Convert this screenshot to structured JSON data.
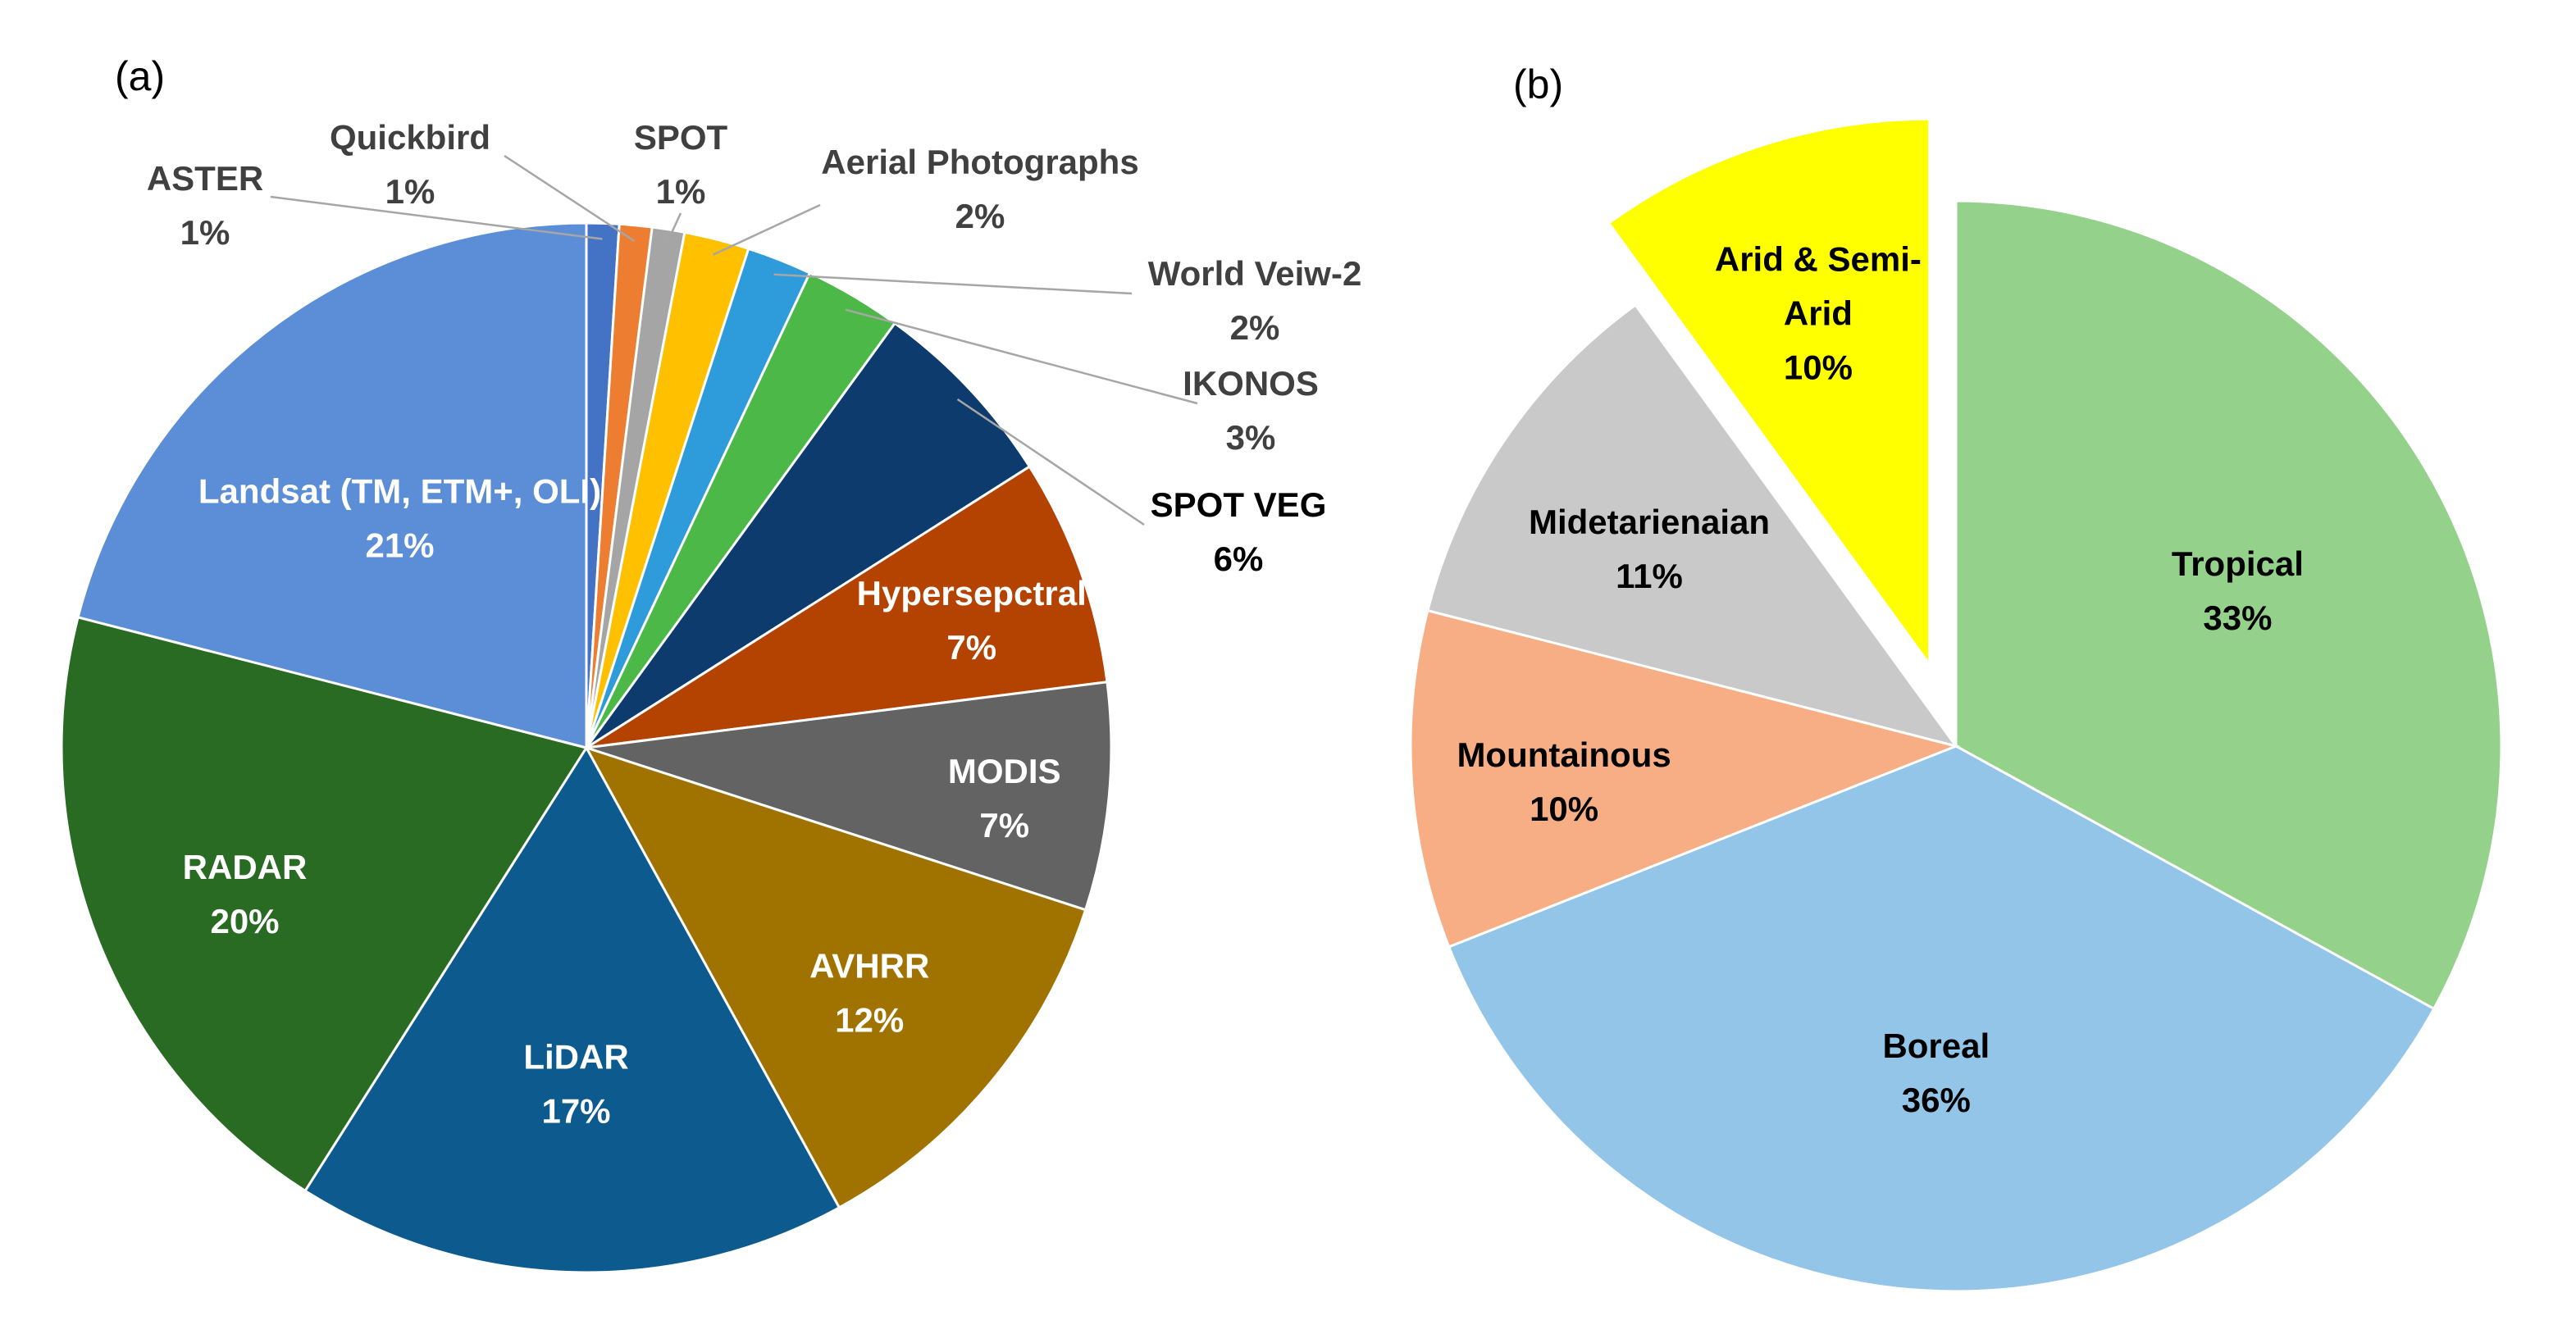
{
  "chart_data": [
    {
      "type": "pie",
      "panel_label": "(a)",
      "slices": [
        {
          "category": "ASTER",
          "percent_label": "1%",
          "value": 1,
          "color": "#4472C4",
          "label_color": "#404040"
        },
        {
          "category": "Quickbird",
          "percent_label": "1%",
          "value": 1,
          "color": "#ED7D31",
          "label_color": "#404040"
        },
        {
          "category": "SPOT",
          "percent_label": "1%",
          "value": 1,
          "color": "#A5A5A5",
          "label_color": "#404040"
        },
        {
          "category": "Aerial Photographs",
          "percent_label": "2%",
          "value": 2,
          "color": "#FFC000",
          "label_color": "#404040"
        },
        {
          "category": "World Veiw-2",
          "percent_label": "2%",
          "value": 2,
          "color": "#2E9BDB",
          "label_color": "#404040"
        },
        {
          "category": "IKONOS",
          "percent_label": "3%",
          "value": 3,
          "color": "#4CB848",
          "label_color": "#404040"
        },
        {
          "category": "SPOT VEG",
          "percent_label": "6%",
          "value": 6,
          "color": "#0D3B6E",
          "label_color": "#000000"
        },
        {
          "category": "Hypersepctral",
          "percent_label": "7%",
          "value": 7,
          "color": "#B44200",
          "label_color": "#FFFFFF"
        },
        {
          "category": "MODIS",
          "percent_label": "7%",
          "value": 7,
          "color": "#636363",
          "label_color": "#FFFFFF"
        },
        {
          "category": "AVHRR",
          "percent_label": "12%",
          "value": 12,
          "color": "#A07200",
          "label_color": "#FFFFFF"
        },
        {
          "category": "LiDAR",
          "percent_label": "17%",
          "value": 17,
          "color": "#0C5A8E",
          "label_color": "#FFFFFF"
        },
        {
          "category": "RADAR",
          "percent_label": "20%",
          "value": 20,
          "color": "#2A6B24",
          "label_color": "#FFFFFF"
        },
        {
          "category": "Landsat (TM, ETM+, OLI)",
          "percent_label": "21%",
          "value": 21,
          "color": "#5B8ED6",
          "label_color": "#FFFFFF"
        }
      ]
    },
    {
      "type": "pie",
      "panel_label": "(b)",
      "slices": [
        {
          "category": "Tropical",
          "percent_label": "33%",
          "value": 33,
          "color": "#94D18B",
          "label_color": "#000000"
        },
        {
          "category": "Boreal",
          "percent_label": "36%",
          "value": 36,
          "color": "#93C5E8",
          "label_color": "#000000"
        },
        {
          "category": "Mountainous",
          "percent_label": "10%",
          "value": 10,
          "color": "#F8AE84",
          "label_color": "#000000"
        },
        {
          "category": "Midetarienaian",
          "percent_label": "11%",
          "value": 11,
          "color": "#C9C9C9",
          "label_color": "#000000"
        },
        {
          "category": "Arid & Semi-Arid",
          "category_lines": [
            "Arid & Semi-",
            "Arid"
          ],
          "percent_label": "10%",
          "value": 10,
          "color": "#FFFF00",
          "label_color": "#000000",
          "exploded": true
        }
      ]
    }
  ]
}
